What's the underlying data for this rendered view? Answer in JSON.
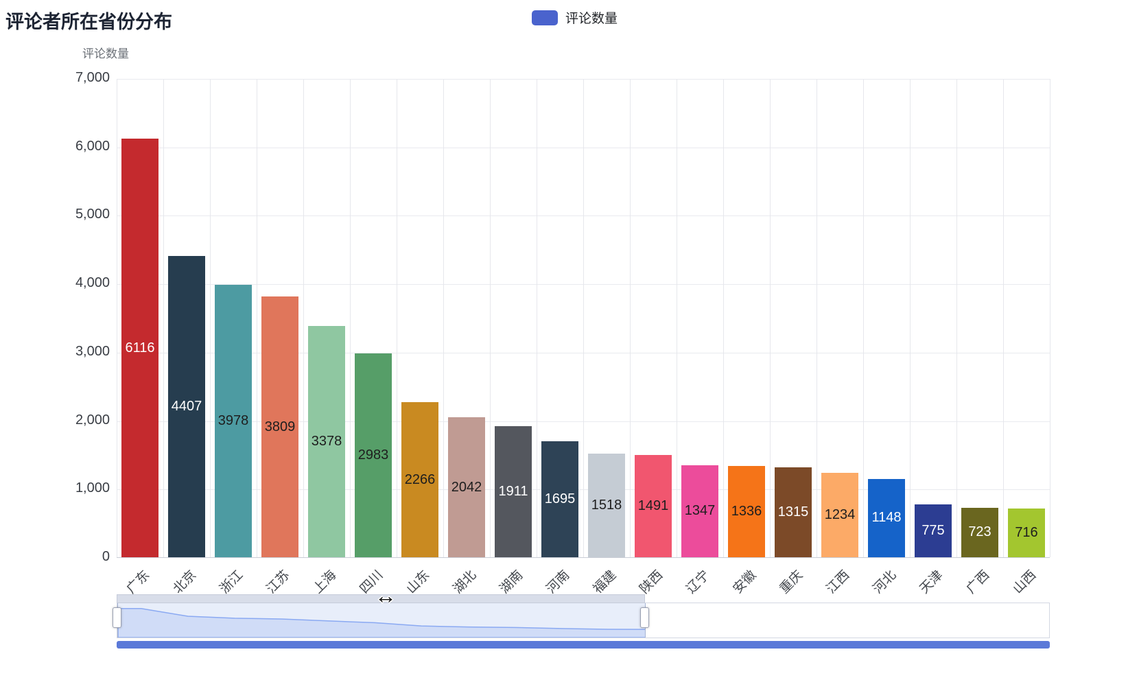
{
  "title": "评论者所在省份分布",
  "legend": {
    "label": "评论数量",
    "color": "#4a63cd"
  },
  "y_axis_name": "评论数量",
  "chart_data": {
    "type": "bar",
    "title": "评论者所在省份分布",
    "xlabel": "",
    "ylabel": "评论数量",
    "legend_position": "top",
    "grid": true,
    "ylim": [
      0,
      7000
    ],
    "y_tick_step": 1000,
    "y_ticks": [
      "0",
      "1,000",
      "2,000",
      "3,000",
      "4,000",
      "5,000",
      "6,000",
      "7,000"
    ],
    "categories": [
      "广东",
      "北京",
      "浙江",
      "江苏",
      "上海",
      "四川",
      "山东",
      "湖北",
      "湖南",
      "河南",
      "福建",
      "陕西",
      "辽宁",
      "安徽",
      "重庆",
      "江西",
      "河北",
      "天津",
      "广西",
      "山西"
    ],
    "values": [
      6116,
      4407,
      3978,
      3809,
      3378,
      2983,
      2266,
      2042,
      1911,
      1695,
      1518,
      1491,
      1347,
      1336,
      1315,
      1234,
      1148,
      775,
      723,
      716
    ],
    "bar_colors": [
      "#c42a2e",
      "#263d4f",
      "#4d9ba2",
      "#e0765b",
      "#8fc7a1",
      "#569e68",
      "#c98a21",
      "#c09b93",
      "#54575e",
      "#2e4356",
      "#c5ccd4",
      "#f1566f",
      "#ec4c9b",
      "#f57418",
      "#7c4a28",
      "#fcaa67",
      "#1563c9",
      "#2c3d92",
      "#6a661f",
      "#a3c62f"
    ],
    "value_label_colors": [
      "#ffffff",
      "#ffffff",
      "#1e1e1e",
      "#1e1e1e",
      "#1e1e1e",
      "#1e1e1e",
      "#1e1e1e",
      "#1e1e1e",
      "#ffffff",
      "#ffffff",
      "#1e1e1e",
      "#1e1e1e",
      "#1e1e1e",
      "#1e1e1e",
      "#ffffff",
      "#1e1e1e",
      "#ffffff",
      "#ffffff",
      "#ffffff",
      "#1e1e1e"
    ]
  },
  "datazoom": {
    "window_start_percent": 0,
    "window_end_percent": 56.6,
    "shadow_fill": "#cdd9f6",
    "shadow_line": "#8aa9f2",
    "window_tint": "rgba(142,170,230,0.20)",
    "bottom_bar_color": "#5b79d8"
  },
  "cursor": {
    "glyph": "↔"
  }
}
